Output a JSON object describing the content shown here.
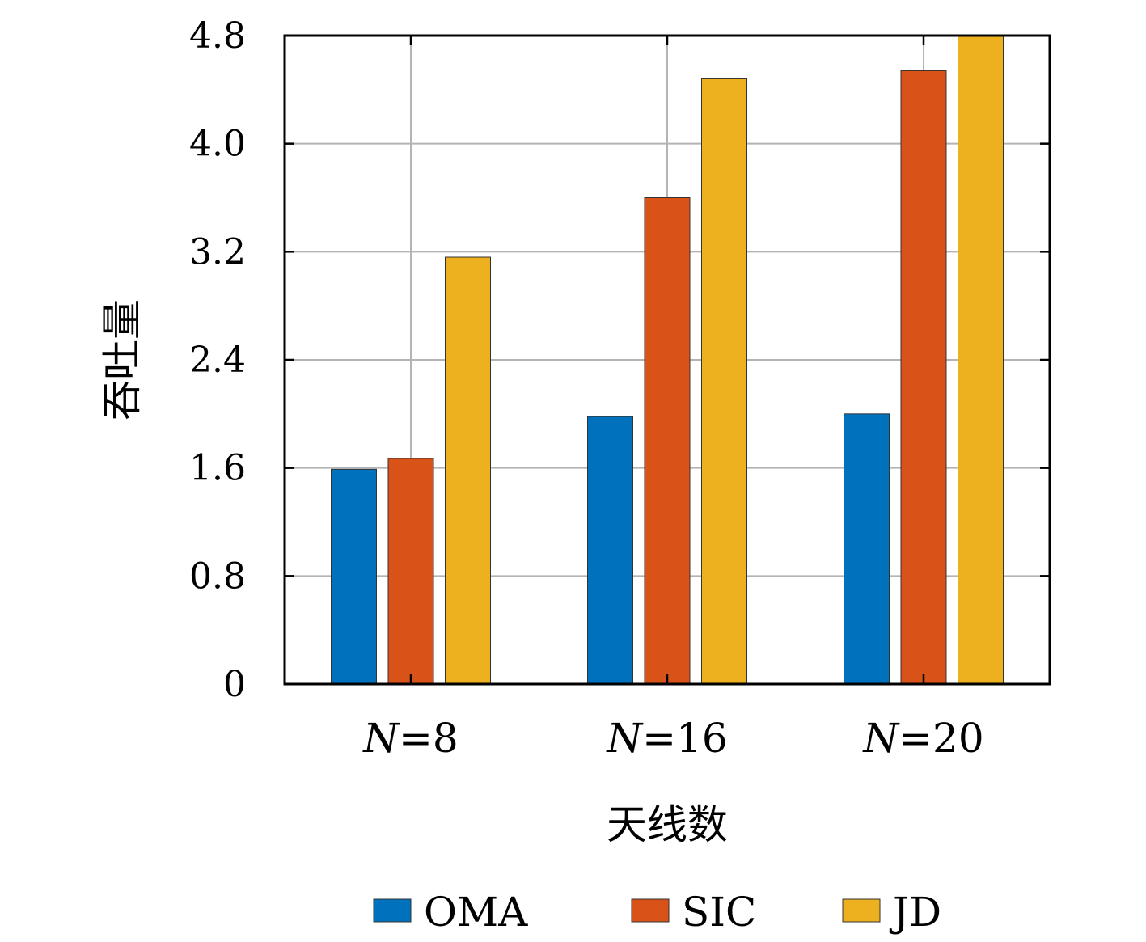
{
  "chart_data": {
    "type": "bar",
    "categories": [
      "N=8",
      "N=16",
      "N=20"
    ],
    "category_parts": [
      {
        "var": "N",
        "rest": "=8"
      },
      {
        "var": "N",
        "rest": "=16"
      },
      {
        "var": "N",
        "rest": "=20"
      }
    ],
    "series": [
      {
        "name": "OMA",
        "color": "#0072BD",
        "values": [
          1.59,
          1.98,
          2.0
        ]
      },
      {
        "name": "SIC",
        "color": "#D95319",
        "values": [
          1.67,
          3.6,
          4.54
        ]
      },
      {
        "name": "JD",
        "color": "#EDB120",
        "values": [
          3.16,
          4.48,
          4.8
        ]
      }
    ],
    "title": "",
    "xlabel": "天线数",
    "ylabel": "吞吐量",
    "ylim": [
      0,
      4.8
    ],
    "yticks": [
      "0",
      "0.8",
      "1.6",
      "2.4",
      "3.2",
      "4.0",
      "4.8"
    ],
    "grid": true,
    "legend": "bottom-horizontal"
  }
}
